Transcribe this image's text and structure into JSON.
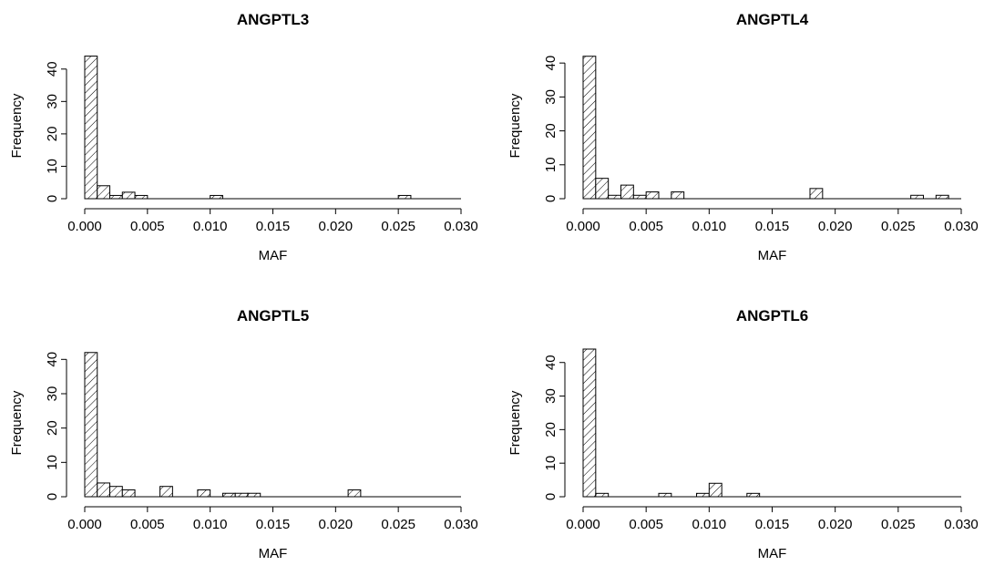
{
  "chart_data": [
    {
      "type": "bar",
      "title": "ANGPTL3",
      "xlabel": "MAF",
      "ylabel": "Frequency",
      "xlim": [
        0,
        0.03
      ],
      "ylim": [
        0,
        45
      ],
      "bin_width": 0.001,
      "x_ticks": [
        "0.000",
        "0.005",
        "0.010",
        "0.015",
        "0.020",
        "0.025",
        "0.030"
      ],
      "y_ticks": [
        "0",
        "10",
        "20",
        "30",
        "40"
      ],
      "bins": [
        {
          "x0": 0.0,
          "x1": 0.001,
          "count": 44
        },
        {
          "x0": 0.001,
          "x1": 0.002,
          "count": 4
        },
        {
          "x0": 0.002,
          "x1": 0.003,
          "count": 1
        },
        {
          "x0": 0.003,
          "x1": 0.004,
          "count": 2
        },
        {
          "x0": 0.004,
          "x1": 0.005,
          "count": 1
        },
        {
          "x0": 0.01,
          "x1": 0.011,
          "count": 1
        },
        {
          "x0": 0.025,
          "x1": 0.026,
          "count": 1
        }
      ]
    },
    {
      "type": "bar",
      "title": "ANGPTL4",
      "xlabel": "MAF",
      "ylabel": "Frequency",
      "xlim": [
        0,
        0.03
      ],
      "ylim": [
        0,
        43
      ],
      "bin_width": 0.001,
      "x_ticks": [
        "0.000",
        "0.005",
        "0.010",
        "0.015",
        "0.020",
        "0.025",
        "0.030"
      ],
      "y_ticks": [
        "0",
        "10",
        "20",
        "30",
        "40"
      ],
      "bins": [
        {
          "x0": 0.0,
          "x1": 0.001,
          "count": 42
        },
        {
          "x0": 0.001,
          "x1": 0.002,
          "count": 6
        },
        {
          "x0": 0.002,
          "x1": 0.003,
          "count": 1
        },
        {
          "x0": 0.003,
          "x1": 0.004,
          "count": 4
        },
        {
          "x0": 0.004,
          "x1": 0.005,
          "count": 1
        },
        {
          "x0": 0.005,
          "x1": 0.006,
          "count": 2
        },
        {
          "x0": 0.007,
          "x1": 0.008,
          "count": 2
        },
        {
          "x0": 0.018,
          "x1": 0.019,
          "count": 3
        },
        {
          "x0": 0.026,
          "x1": 0.027,
          "count": 1
        },
        {
          "x0": 0.028,
          "x1": 0.029,
          "count": 1
        }
      ]
    },
    {
      "type": "bar",
      "title": "ANGPTL5",
      "xlabel": "MAF",
      "ylabel": "Frequency",
      "xlim": [
        0,
        0.03
      ],
      "ylim": [
        0,
        43
      ],
      "bin_width": 0.001,
      "x_ticks": [
        "0.000",
        "0.005",
        "0.010",
        "0.015",
        "0.020",
        "0.025",
        "0.030"
      ],
      "y_ticks": [
        "0",
        "10",
        "20",
        "30",
        "40"
      ],
      "bins": [
        {
          "x0": 0.0,
          "x1": 0.001,
          "count": 42
        },
        {
          "x0": 0.001,
          "x1": 0.002,
          "count": 4
        },
        {
          "x0": 0.002,
          "x1": 0.003,
          "count": 3
        },
        {
          "x0": 0.003,
          "x1": 0.004,
          "count": 2
        },
        {
          "x0": 0.006,
          "x1": 0.007,
          "count": 3
        },
        {
          "x0": 0.009,
          "x1": 0.01,
          "count": 2
        },
        {
          "x0": 0.011,
          "x1": 0.012,
          "count": 1
        },
        {
          "x0": 0.012,
          "x1": 0.013,
          "count": 1
        },
        {
          "x0": 0.013,
          "x1": 0.014,
          "count": 1
        },
        {
          "x0": 0.021,
          "x1": 0.022,
          "count": 2
        }
      ]
    },
    {
      "type": "bar",
      "title": "ANGPTL6",
      "xlabel": "MAF",
      "ylabel": "Frequency",
      "xlim": [
        0,
        0.03
      ],
      "ylim": [
        0,
        44
      ],
      "bin_width": 0.001,
      "x_ticks": [
        "0.000",
        "0.005",
        "0.010",
        "0.015",
        "0.020",
        "0.025",
        "0.030"
      ],
      "y_ticks": [
        "0",
        "10",
        "20",
        "30",
        "40"
      ],
      "bins": [
        {
          "x0": 0.0,
          "x1": 0.001,
          "count": 44
        },
        {
          "x0": 0.001,
          "x1": 0.002,
          "count": 1
        },
        {
          "x0": 0.006,
          "x1": 0.007,
          "count": 1
        },
        {
          "x0": 0.009,
          "x1": 0.01,
          "count": 1
        },
        {
          "x0": 0.01,
          "x1": 0.011,
          "count": 4
        },
        {
          "x0": 0.013,
          "x1": 0.014,
          "count": 1
        }
      ]
    }
  ],
  "style": {
    "bar_fill": "#ffffff",
    "bar_stroke": "#000000",
    "hatch": "diagonal"
  }
}
